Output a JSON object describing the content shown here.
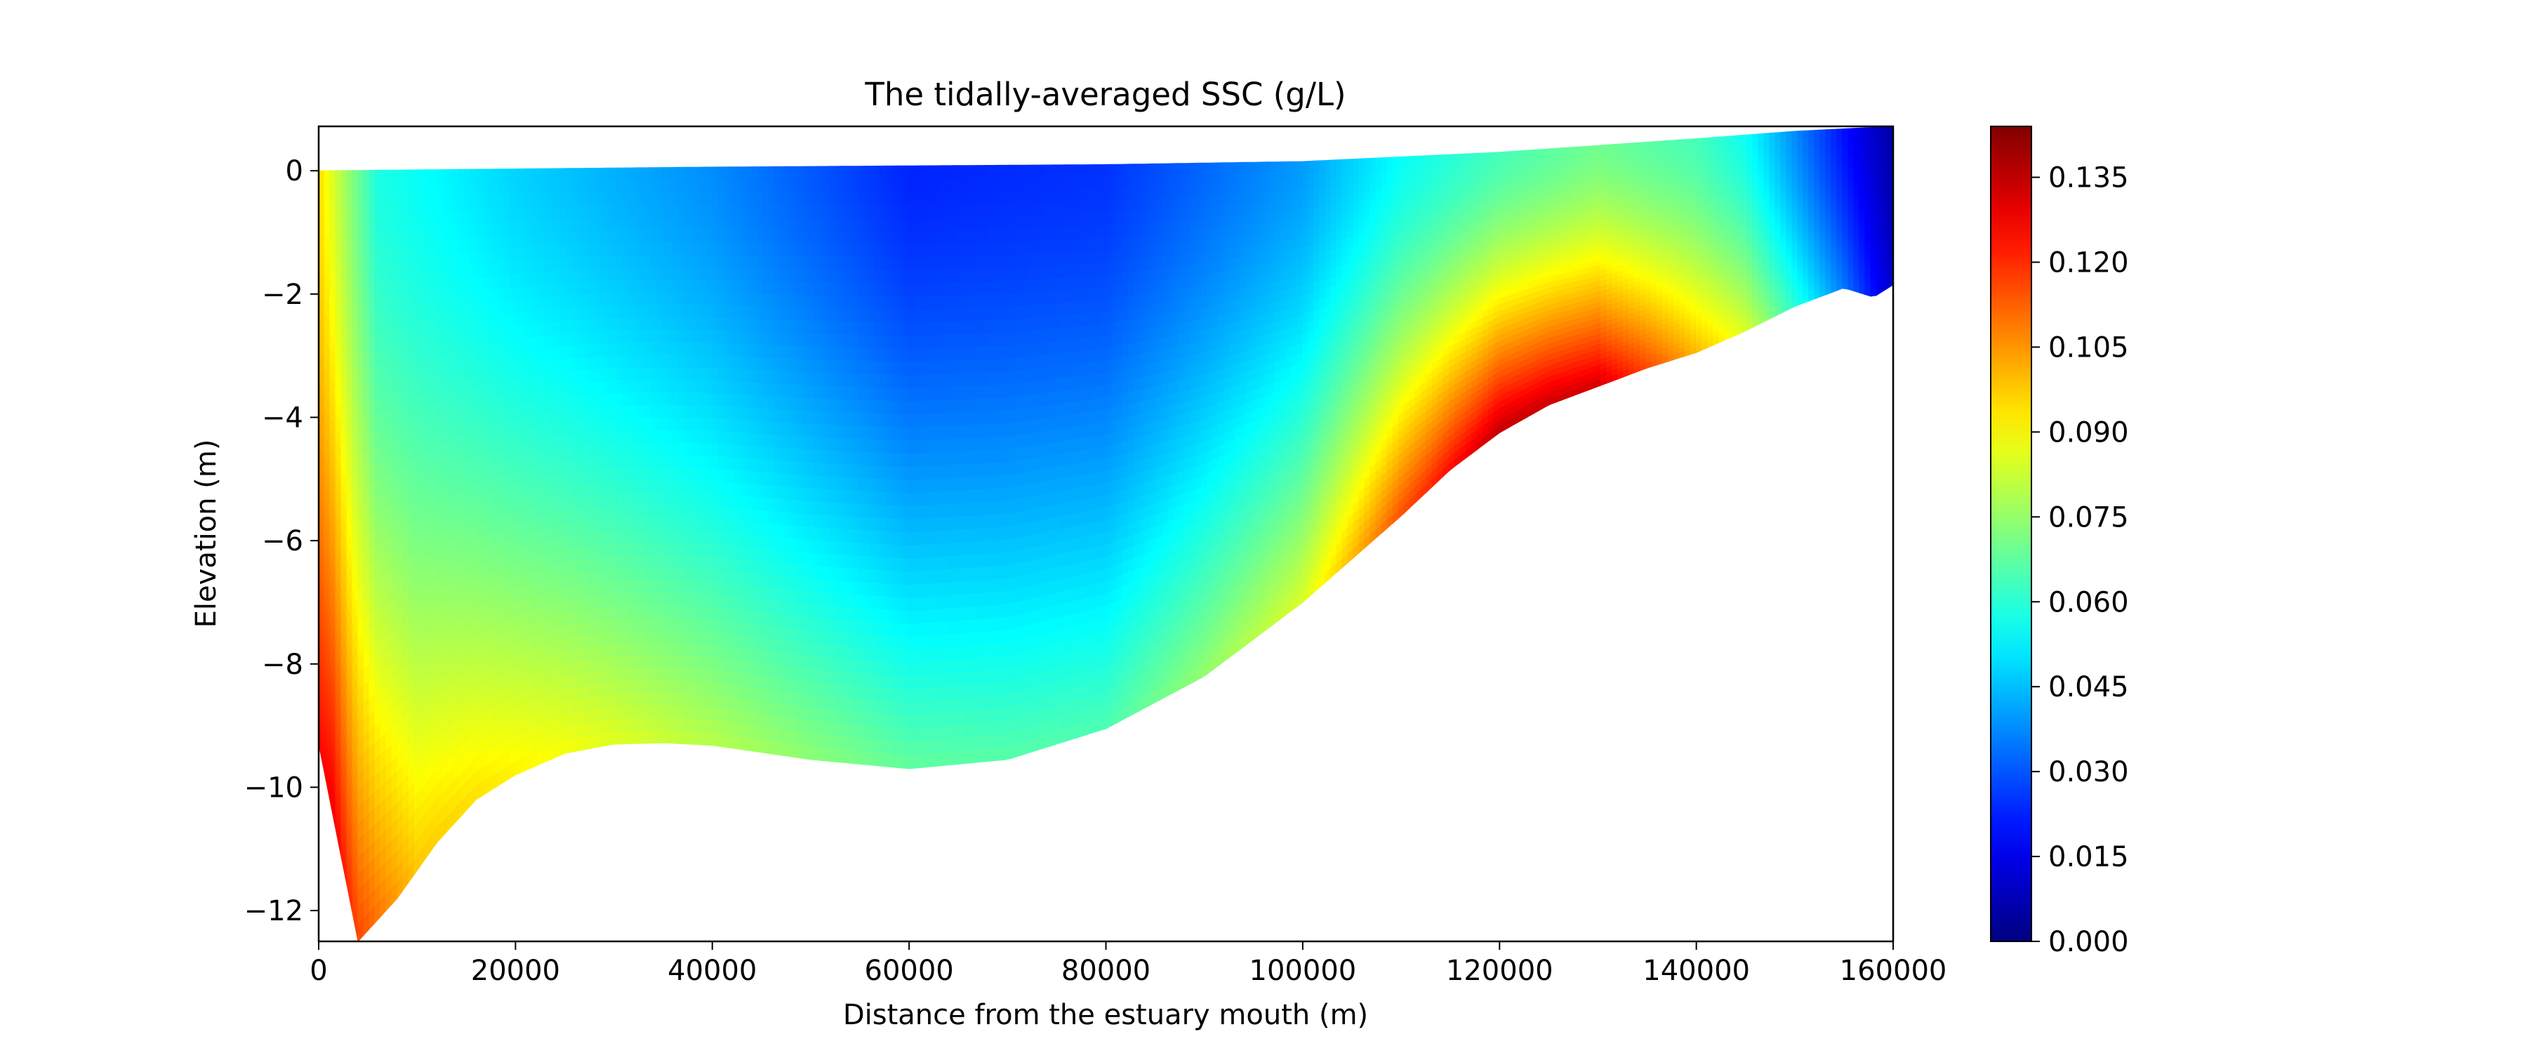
{
  "chart_data": {
    "type": "heatmap",
    "title": "The tidally-averaged SSC (g/L)",
    "xlabel": "Distance from the estuary mouth (m)",
    "ylabel": "Elevation (m)",
    "xlim": [
      0,
      160000
    ],
    "ylim": [
      -12.5,
      0.72
    ],
    "x_ticks": [
      0,
      20000,
      40000,
      60000,
      80000,
      100000,
      120000,
      140000,
      160000
    ],
    "y_ticks": [
      0,
      -2,
      -4,
      -6,
      -8,
      -10,
      -12
    ],
    "colorbar": {
      "colormap": "jet",
      "range": [
        0,
        0.144
      ],
      "ticks": [
        "0.000",
        "0.015",
        "0.030",
        "0.045",
        "0.060",
        "0.075",
        "0.090",
        "0.105",
        "0.120",
        "0.135"
      ]
    },
    "surface_elevation": {
      "x": [
        0,
        20000,
        40000,
        60000,
        80000,
        100000,
        120000,
        140000,
        150000,
        160000
      ],
      "z": [
        0.0,
        0.03,
        0.06,
        0.08,
        0.1,
        0.15,
        0.3,
        0.52,
        0.64,
        0.72
      ]
    },
    "bed_elevation": {
      "x": [
        0,
        4000,
        8000,
        12000,
        16000,
        20000,
        25000,
        30000,
        35000,
        40000,
        50000,
        60000,
        70000,
        80000,
        90000,
        100000,
        110000,
        115000,
        120000,
        125000,
        130000,
        135000,
        140000,
        145000,
        150000,
        155000,
        158000,
        160000
      ],
      "z": [
        -9.3,
        -12.5,
        -11.8,
        -10.9,
        -10.2,
        -9.8,
        -9.45,
        -9.3,
        -9.28,
        -9.32,
        -9.55,
        -9.7,
        -9.55,
        -9.05,
        -8.2,
        -7.0,
        -5.6,
        -4.85,
        -4.25,
        -3.8,
        -3.5,
        -3.2,
        -2.95,
        -2.6,
        -2.2,
        -1.9,
        -2.05,
        -1.85
      ]
    },
    "ssc_profile": {
      "x": [
        0,
        1500,
        3000,
        6000,
        10000,
        20000,
        40000,
        60000,
        80000,
        100000,
        110000,
        120000,
        130000,
        140000,
        145000,
        150000,
        155000,
        160000
      ],
      "surface": [
        0.095,
        0.085,
        0.075,
        0.058,
        0.055,
        0.048,
        0.038,
        0.023,
        0.025,
        0.04,
        0.055,
        0.064,
        0.07,
        0.064,
        0.056,
        0.038,
        0.02,
        0.005
      ],
      "bed": [
        0.125,
        0.128,
        0.12,
        0.11,
        0.098,
        0.092,
        0.08,
        0.068,
        0.065,
        0.085,
        0.115,
        0.135,
        0.132,
        0.1,
        0.085,
        0.06,
        0.035,
        0.01
      ]
    }
  }
}
